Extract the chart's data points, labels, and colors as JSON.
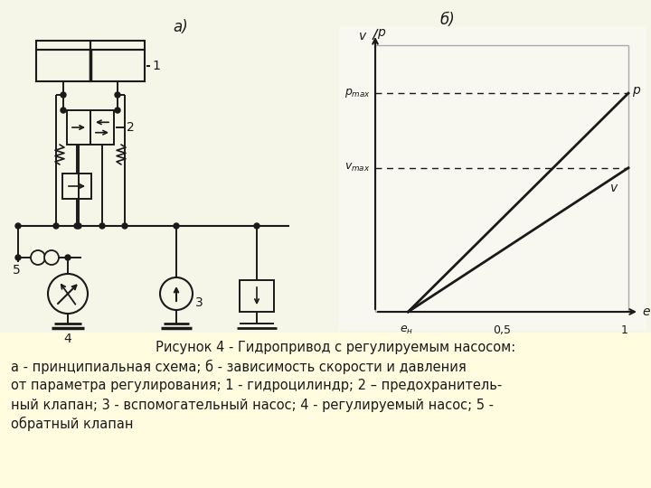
{
  "bg_color": "#fffff0",
  "bg_top": "#ffffff",
  "caption_bg": "#ffffd0",
  "black": "#1a1a1a",
  "gray": "#888888",
  "caption_line1": "     Рисунок 4 - Гидропривод с регулируемым насосом:",
  "caption_line2": "а - принципиальная схема; б - зависимость скорости и давления",
  "caption_line3": "от параметра регулирования; 1 - гидроцилиндр; 2 – предохранитель-",
  "caption_line4": "ный клапан; 3 - вспомогательный насос; 4 - регулируемый насос; 5 -",
  "caption_line5": "обратный клапан",
  "label_a": "а)",
  "label_b": "б)"
}
